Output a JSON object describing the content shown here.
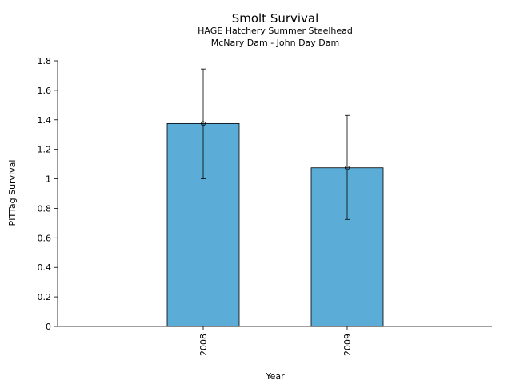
{
  "chart_data": {
    "type": "bar",
    "title": "Smolt Survival",
    "subtitle_lines": [
      "HAGE Hatchery Summer Steelhead",
      "McNary Dam - John Day Dam"
    ],
    "xlabel": "Year",
    "ylabel": "PITTag Survival",
    "categories": [
      "2008",
      "2009"
    ],
    "values": [
      1.375,
      1.075
    ],
    "error_low": [
      1.0,
      0.725
    ],
    "error_high": [
      1.745,
      1.43
    ],
    "ylim": [
      0,
      1.8
    ],
    "yticks": [
      0,
      0.2,
      0.4,
      0.6,
      0.8,
      1,
      1.2,
      1.4,
      1.6,
      1.8
    ],
    "ytick_labels": [
      "0",
      "0.2",
      "0.4",
      "0.6",
      "0.8",
      "1",
      "1.2",
      "1.4",
      "1.6",
      "1.8"
    ],
    "grid": false,
    "bar_color": "#5bacd6"
  }
}
